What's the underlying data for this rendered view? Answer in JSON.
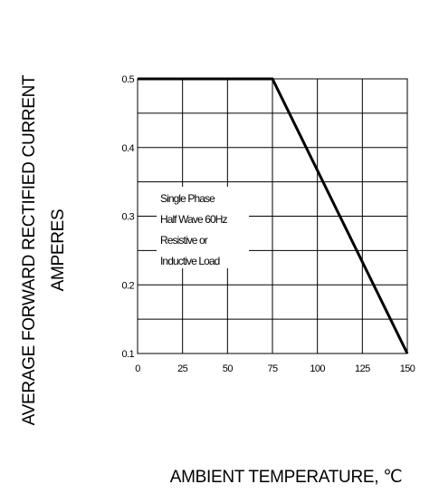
{
  "chart_data": {
    "type": "line",
    "title": "",
    "xlabel": "AMBIENT TEMPERATURE, ℃",
    "ylabel": [
      "AVERAGE FORWARD RECTIFIED CURRENT",
      "AMPERES"
    ],
    "xlim": [
      0,
      150
    ],
    "ylim": [
      0.1,
      0.5
    ],
    "x_ticks": [
      0,
      25,
      50,
      75,
      100,
      125,
      150
    ],
    "x_tick_labels": [
      "0",
      "25",
      "50",
      "75",
      "100",
      "125",
      "150"
    ],
    "y_ticks": [
      0.1,
      0.2,
      0.3,
      0.4,
      0.5
    ],
    "y_tick_labels": [
      "0.1",
      "0.2",
      "0.3",
      "0.4",
      "0.5"
    ],
    "x_grid": [
      25,
      50,
      75,
      100,
      125
    ],
    "y_grid": [
      0.15,
      0.2,
      0.25,
      0.3,
      0.35,
      0.4,
      0.45
    ],
    "grid": true,
    "series": [
      {
        "x": [
          0,
          75,
          150
        ],
        "y": [
          0.5,
          0.5,
          0.1
        ]
      }
    ],
    "annotation": [
      "Single Phase",
      "Half Wave 60Hz",
      "Resistive or",
      "Inductive Load"
    ],
    "colors": {
      "line": "#000000",
      "grid": "#000000",
      "background": "#ffffff"
    }
  }
}
